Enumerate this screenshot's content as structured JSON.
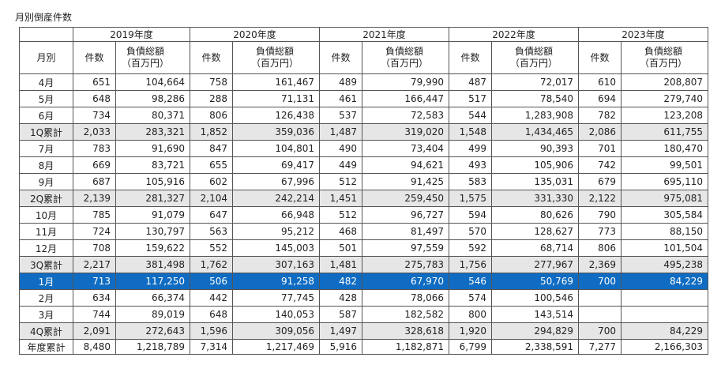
{
  "title": "月別倒産件数",
  "header": {
    "years": [
      "2019年度",
      "2020年度",
      "2021年度",
      "2022年度",
      "2023年度"
    ],
    "month_label": "月別",
    "count_label": "件数",
    "amount_label_line1": "負債総額",
    "amount_label_line2": "（百万円）"
  },
  "rows": [
    {
      "label": "4月",
      "type": "month",
      "cells": [
        "651",
        "104,664",
        "758",
        "161,467",
        "489",
        "79,990",
        "487",
        "72,017",
        "610",
        "208,807"
      ]
    },
    {
      "label": "5月",
      "type": "month",
      "cells": [
        "648",
        "98,286",
        "288",
        "71,131",
        "461",
        "166,447",
        "517",
        "78,540",
        "694",
        "279,740"
      ]
    },
    {
      "label": "6月",
      "type": "month",
      "cells": [
        "734",
        "80,371",
        "806",
        "126,438",
        "537",
        "72,583",
        "544",
        "1,283,908",
        "782",
        "123,208"
      ]
    },
    {
      "label": "1Q累計",
      "type": "quarter",
      "cells": [
        "2,033",
        "283,321",
        "1,852",
        "359,036",
        "1,487",
        "319,020",
        "1,548",
        "1,434,465",
        "2,086",
        "611,755"
      ]
    },
    {
      "label": "7月",
      "type": "month",
      "cells": [
        "783",
        "91,690",
        "847",
        "104,801",
        "490",
        "73,404",
        "499",
        "90,393",
        "701",
        "180,470"
      ]
    },
    {
      "label": "8月",
      "type": "month",
      "cells": [
        "669",
        "83,721",
        "655",
        "69,417",
        "449",
        "94,621",
        "493",
        "105,906",
        "742",
        "99,501"
      ]
    },
    {
      "label": "9月",
      "type": "month",
      "cells": [
        "687",
        "105,916",
        "602",
        "67,996",
        "512",
        "91,425",
        "583",
        "135,031",
        "679",
        "695,110"
      ]
    },
    {
      "label": "2Q累計",
      "type": "quarter",
      "cells": [
        "2,139",
        "281,327",
        "2,104",
        "242,214",
        "1,451",
        "259,450",
        "1,575",
        "331,330",
        "2,122",
        "975,081"
      ]
    },
    {
      "label": "10月",
      "type": "month",
      "cells": [
        "785",
        "91,079",
        "647",
        "66,948",
        "512",
        "96,727",
        "594",
        "80,626",
        "790",
        "305,584"
      ]
    },
    {
      "label": "11月",
      "type": "month",
      "cells": [
        "724",
        "130,797",
        "563",
        "95,212",
        "468",
        "81,497",
        "570",
        "128,627",
        "773",
        "88,150"
      ]
    },
    {
      "label": "12月",
      "type": "month",
      "cells": [
        "708",
        "159,622",
        "552",
        "145,003",
        "501",
        "97,559",
        "592",
        "68,714",
        "806",
        "101,504"
      ]
    },
    {
      "label": "3Q累計",
      "type": "quarter",
      "cells": [
        "2,217",
        "381,498",
        "1,762",
        "307,163",
        "1,481",
        "275,783",
        "1,756",
        "277,967",
        "2,369",
        "495,238"
      ]
    },
    {
      "label": "1月",
      "type": "highlight",
      "cells": [
        "713",
        "117,250",
        "506",
        "91,258",
        "482",
        "67,970",
        "546",
        "50,769",
        "700",
        "84,229"
      ]
    },
    {
      "label": "2月",
      "type": "month",
      "cells": [
        "634",
        "66,374",
        "442",
        "77,745",
        "428",
        "78,066",
        "574",
        "100,546",
        "",
        ""
      ]
    },
    {
      "label": "3月",
      "type": "month",
      "cells": [
        "744",
        "89,019",
        "648",
        "140,053",
        "587",
        "182,582",
        "800",
        "143,514",
        "",
        ""
      ]
    },
    {
      "label": "4Q累計",
      "type": "quarter",
      "cells": [
        "2,091",
        "272,643",
        "1,596",
        "309,056",
        "1,497",
        "328,618",
        "1,920",
        "294,829",
        "700",
        "84,229"
      ]
    },
    {
      "label": "年度累計",
      "type": "total",
      "cells": [
        "8,480",
        "1,218,789",
        "7,314",
        "1,217,469",
        "5,916",
        "1,182,871",
        "6,799",
        "2,338,591",
        "7,277",
        "2,166,303"
      ]
    }
  ]
}
